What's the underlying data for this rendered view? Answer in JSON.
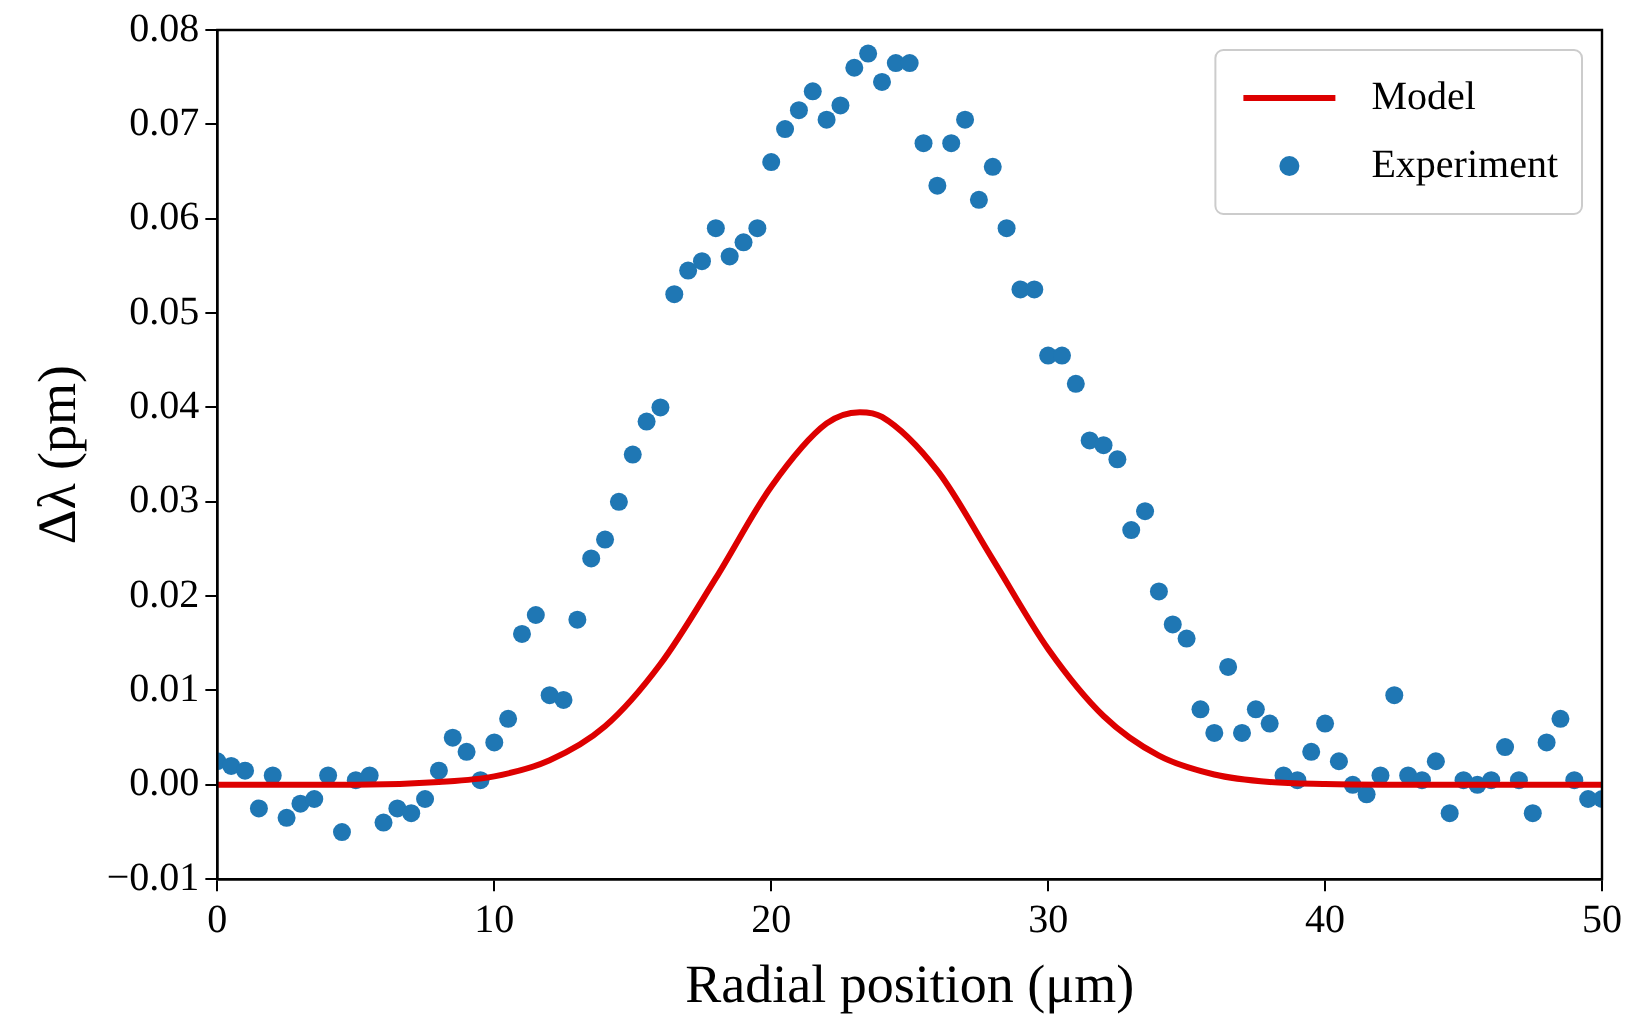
{
  "chart_data": {
    "type": "scatter",
    "xlabel": "Radial position (μm)",
    "ylabel": "Δλ (pm)",
    "xlim": [
      0,
      50
    ],
    "xticks": [
      0,
      10,
      20,
      30,
      40,
      50
    ],
    "ylim": [
      -0.01,
      0.08
    ],
    "yticks": [
      {
        "value": -0.01,
        "label": "−0.01"
      },
      {
        "value": 0,
        "label": "0.00"
      },
      {
        "value": 0.01,
        "label": "0.01"
      },
      {
        "value": 0.02,
        "label": "0.02"
      },
      {
        "value": 0.03,
        "label": "0.03"
      },
      {
        "value": 0.04,
        "label": "0.04"
      },
      {
        "value": 0.05,
        "label": "0.05"
      },
      {
        "value": 0.06,
        "label": "0.06"
      },
      {
        "value": 0.07,
        "label": "0.07"
      },
      {
        "value": 0.08,
        "label": "0.08"
      }
    ],
    "grid": false,
    "legend": "top right",
    "series": [
      {
        "name": "Model",
        "type": "line",
        "color": "#dd0000",
        "marker": "none",
        "line_style": "solid",
        "x": [
          0,
          2,
          5,
          8,
          10,
          12,
          14,
          16,
          18,
          20,
          22,
          23.2,
          24,
          26,
          28,
          30,
          32,
          34,
          36,
          38,
          40,
          45,
          50
        ],
        "values": [
          0,
          0,
          0,
          0.0003,
          0.0009,
          0.0026,
          0.0062,
          0.0128,
          0.0219,
          0.0316,
          0.0383,
          0.0395,
          0.039,
          0.0333,
          0.0239,
          0.0144,
          0.0073,
          0.0031,
          0.0011,
          0.0003,
          0.0001,
          0,
          0
        ]
      },
      {
        "name": "Experiment",
        "color": "#1f77b4",
        "marker": "circle",
        "x": [
          0,
          0.5,
          1,
          1.5,
          2,
          2.5,
          3,
          3.5,
          4,
          4.5,
          5,
          5.5,
          6,
          6.5,
          7,
          7.5,
          8,
          8.5,
          9,
          9.5,
          10,
          10.5,
          11,
          11.5,
          12,
          12.5,
          13,
          13.5,
          14,
          14.5,
          15,
          15.5,
          16,
          16.5,
          17,
          17.5,
          18,
          18.5,
          19,
          19.5,
          20,
          20.5,
          21,
          21.5,
          22,
          22.5,
          23,
          23.5,
          24,
          24.5,
          25,
          25.5,
          26,
          26.5,
          27,
          27.5,
          28,
          28.5,
          29,
          29.5,
          30,
          30.5,
          31,
          31.5,
          32,
          32.5,
          33,
          33.5,
          34,
          34.5,
          35,
          35.5,
          36,
          36.5,
          37,
          37.5,
          38,
          38.5,
          39,
          39.5,
          40,
          40.5,
          41,
          41.5,
          42,
          42.5,
          43,
          43.5,
          44,
          44.5,
          45,
          45.5,
          46,
          46.5,
          47,
          47.5,
          48,
          48.5,
          49,
          49.5,
          50
        ],
        "values": [
          0.0025,
          0.002,
          0.0015,
          -0.0025,
          0.001,
          -0.0035,
          -0.002,
          -0.0015,
          0.001,
          -0.005,
          0.0005,
          0.001,
          -0.004,
          -0.0025,
          -0.003,
          -0.0015,
          0.0015,
          0.005,
          0.0035,
          0.0005,
          0.0045,
          0.007,
          0.016,
          0.018,
          0.0095,
          0.009,
          0.0175,
          0.024,
          0.026,
          0.03,
          0.035,
          0.0385,
          0.04,
          0.052,
          0.0545,
          0.0555,
          0.059,
          0.056,
          0.0575,
          0.059,
          0.066,
          0.0695,
          0.0715,
          0.0735,
          0.0705,
          0.072,
          0.076,
          0.0775,
          0.0745,
          0.0765,
          0.0765,
          0.068,
          0.0635,
          0.068,
          0.0705,
          0.062,
          0.0655,
          0.059,
          0.0525,
          0.0525,
          0.0455,
          0.0455,
          0.0425,
          0.0365,
          0.036,
          0.0345,
          0.027,
          0.029,
          0.0205,
          0.017,
          0.0155,
          0.008,
          0.0055,
          0.0125,
          0.0055,
          0.008,
          0.0065,
          0.001,
          0.0005,
          0.0035,
          0.0065,
          0.0025,
          0,
          -0.001,
          0.001,
          0.0095,
          0.001,
          0.0005,
          0.0025,
          -0.003,
          0.0005,
          0,
          0.0005,
          0.004,
          0.0005,
          -0.003,
          0.0045,
          0.007,
          0.0005,
          -0.0015,
          -0.0015
        ]
      }
    ]
  }
}
